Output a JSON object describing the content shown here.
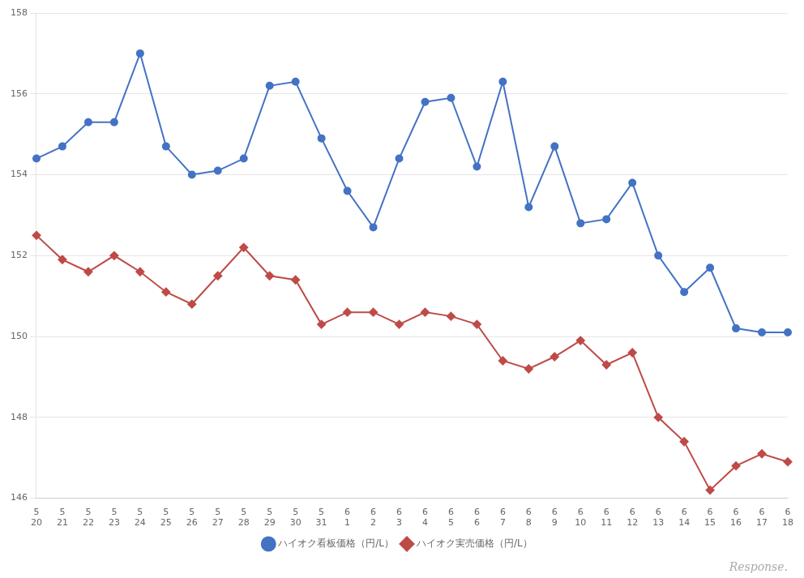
{
  "chart_data": {
    "type": "line",
    "categories": [
      "5\n20",
      "5\n21",
      "5\n22",
      "5\n23",
      "5\n24",
      "5\n25",
      "5\n26",
      "5\n27",
      "5\n28",
      "5\n29",
      "5\n30",
      "5\n31",
      "6\n1",
      "6\n2",
      "6\n3",
      "6\n4",
      "6\n5",
      "6\n6",
      "6\n7",
      "6\n8",
      "6\n9",
      "6\n10",
      "6\n11",
      "6\n12",
      "6\n13",
      "6\n14",
      "6\n15",
      "6\n16",
      "6\n17",
      "6\n18"
    ],
    "series": [
      {
        "name": "ハイオク看板価格（円/L）",
        "color": "#4472c4",
        "marker": "circle",
        "values": [
          154.4,
          154.7,
          155.3,
          155.3,
          157.0,
          154.7,
          154.0,
          154.1,
          154.4,
          156.2,
          156.3,
          154.9,
          153.6,
          152.7,
          154.4,
          155.8,
          155.9,
          154.2,
          156.3,
          153.2,
          154.7,
          152.8,
          152.9,
          153.8,
          152.0,
          151.1,
          151.7,
          150.2,
          150.1,
          150.1
        ]
      },
      {
        "name": "ハイオク実売価格（円/L）",
        "color": "#be4b48",
        "marker": "diamond",
        "values": [
          152.5,
          151.9,
          151.6,
          152.0,
          151.6,
          151.1,
          150.8,
          151.5,
          152.2,
          151.5,
          151.4,
          150.3,
          150.6,
          150.6,
          150.3,
          150.6,
          150.5,
          150.3,
          149.4,
          149.2,
          149.5,
          149.9,
          149.3,
          149.6,
          148.0,
          147.4,
          146.2,
          146.8,
          147.1,
          146.9
        ]
      }
    ],
    "ylim": [
      146,
      158
    ],
    "yticks": [
      146,
      148,
      150,
      152,
      154,
      156,
      158
    ],
    "grid": "y",
    "legend": "bottom",
    "annotations": [
      "Response."
    ]
  }
}
